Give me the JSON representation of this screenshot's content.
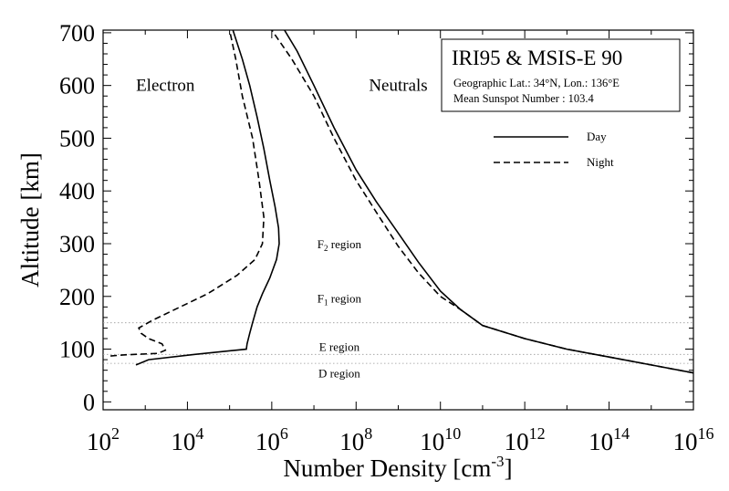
{
  "chart_data": {
    "type": "line",
    "title": "IRI95 & MSIS-E 90",
    "info_lines": [
      "Geographic Lat.: 34°N, Lon.: 136°E",
      "Mean Sunspot Number : 103.4"
    ],
    "xlabel": "Number Density [cm",
    "xlabel_exp": "-3",
    "xlabel_close": "]",
    "ylabel": "Altitude [km]",
    "x_scale": "log",
    "xlim": [
      100,
      1e+16
    ],
    "ylim": [
      -15,
      705
    ],
    "x_ticks": [
      {
        "value": 100,
        "base": "10",
        "exp": "2"
      },
      {
        "value": 10000.0,
        "base": "10",
        "exp": "4"
      },
      {
        "value": 1000000.0,
        "base": "10",
        "exp": "6"
      },
      {
        "value": 100000000.0,
        "base": "10",
        "exp": "8"
      },
      {
        "value": 10000000000.0,
        "base": "10",
        "exp": "10"
      },
      {
        "value": 1000000000000.0,
        "base": "10",
        "exp": "12"
      },
      {
        "value": 100000000000000.0,
        "base": "10",
        "exp": "14"
      },
      {
        "value": 1e+16,
        "base": "10",
        "exp": "16"
      }
    ],
    "y_ticks": [
      {
        "value": 0,
        "label": "0"
      },
      {
        "value": 100,
        "label": "100"
      },
      {
        "value": 200,
        "label": "200"
      },
      {
        "value": 300,
        "label": "300"
      },
      {
        "value": 400,
        "label": "400"
      },
      {
        "value": 500,
        "label": "500"
      },
      {
        "value": 600,
        "label": "600"
      },
      {
        "value": 700,
        "label": "700"
      }
    ],
    "grid": false,
    "legend_position": "top-right",
    "legend": [
      {
        "label": "Day",
        "style": "solid"
      },
      {
        "label": "Night",
        "style": "dashed"
      }
    ],
    "curve_labels": [
      {
        "text": "Electron",
        "x": 3000.0,
        "y": 600
      },
      {
        "text": "Neutrals",
        "x": 1000000000.0,
        "y": 600
      }
    ],
    "region_labels": [
      {
        "name": "F2",
        "prefix": "F",
        "sub": "2",
        "suffix": " region",
        "x": 40000000.0,
        "y": 300
      },
      {
        "name": "F1",
        "prefix": "F",
        "sub": "1",
        "suffix": " region",
        "x": 40000000.0,
        "y": 197
      },
      {
        "name": "E",
        "prefix": "",
        "sub": "",
        "suffix": "E region",
        "x": 40000000.0,
        "y": 105
      },
      {
        "name": "D",
        "prefix": "",
        "sub": "",
        "suffix": "D region",
        "x": 40000000.0,
        "y": 55
      }
    ],
    "region_boundaries": [
      150,
      90,
      73
    ],
    "series": [
      {
        "name": "Electron Day",
        "style": "solid",
        "points": [
          [
            600.0,
            70
          ],
          [
            1200.0,
            80
          ],
          [
            15000.0,
            90
          ],
          [
            250000.0,
            100
          ],
          [
            260000.0,
            110
          ],
          [
            300000.0,
            130
          ],
          [
            350000.0,
            150
          ],
          [
            450000.0,
            180
          ],
          [
            600000.0,
            205
          ],
          [
            900000.0,
            235
          ],
          [
            1300000.0,
            270
          ],
          [
            1500000.0,
            300
          ],
          [
            1450000.0,
            330
          ],
          [
            1200000.0,
            370
          ],
          [
            900000.0,
            420
          ],
          [
            650000.0,
            480
          ],
          [
            450000.0,
            540
          ],
          [
            300000.0,
            600
          ],
          [
            200000.0,
            650
          ],
          [
            120000.0,
            705
          ]
        ]
      },
      {
        "name": "Electron Night",
        "style": "dashed",
        "points": [
          [
            150.0,
            87
          ],
          [
            300.0,
            89
          ],
          [
            2000.0,
            92
          ],
          [
            3000.0,
            98
          ],
          [
            2500.0,
            110
          ],
          [
            1200.0,
            120
          ],
          [
            800.0,
            130
          ],
          [
            700.0,
            140
          ],
          [
            1500.0,
            155
          ],
          [
            5000.0,
            175
          ],
          [
            30000.0,
            205
          ],
          [
            150000.0,
            240
          ],
          [
            400000.0,
            270
          ],
          [
            600000.0,
            300
          ],
          [
            650000.0,
            350
          ],
          [
            500000.0,
            420
          ],
          [
            350000.0,
            500
          ],
          [
            200000.0,
            580
          ],
          [
            140000.0,
            650
          ],
          [
            100000.0,
            705
          ]
        ]
      },
      {
        "name": "Neutrals Day",
        "style": "solid",
        "points": [
          [
            1e+16,
            55
          ],
          [
            1000000000000000.0,
            70
          ],
          [
            100000000000000.0,
            85
          ],
          [
            10000000000000.0,
            100
          ],
          [
            1000000000000.0,
            120
          ],
          [
            100000000000.0,
            145
          ],
          [
            30000000000.0,
            175
          ],
          [
            10000000000.0,
            210
          ],
          [
            3000000000.0,
            265
          ],
          [
            1000000000.0,
            320
          ],
          [
            300000000.0,
            380
          ],
          [
            100000000.0,
            440
          ],
          [
            30000000.0,
            520
          ],
          [
            10000000.0,
            600
          ],
          [
            4000000.0,
            665
          ],
          [
            2000000.0,
            705
          ]
        ]
      },
      {
        "name": "Neutrals Night",
        "style": "dashed",
        "points": [
          [
            1e+16,
            55
          ],
          [
            1000000000000000.0,
            70
          ],
          [
            100000000000000.0,
            85
          ],
          [
            10000000000000.0,
            100
          ],
          [
            1000000000000.0,
            120
          ],
          [
            100000000000.0,
            145
          ],
          [
            30000000000.0,
            175
          ],
          [
            10000000000.0,
            200
          ],
          [
            3000000000.0,
            245
          ],
          [
            1000000000.0,
            295
          ],
          [
            300000000.0,
            360
          ],
          [
            100000000.0,
            420
          ],
          [
            30000000.0,
            500
          ],
          [
            10000000.0,
            580
          ],
          [
            3000000.0,
            650
          ],
          [
            1000000.0,
            705
          ]
        ]
      }
    ]
  }
}
